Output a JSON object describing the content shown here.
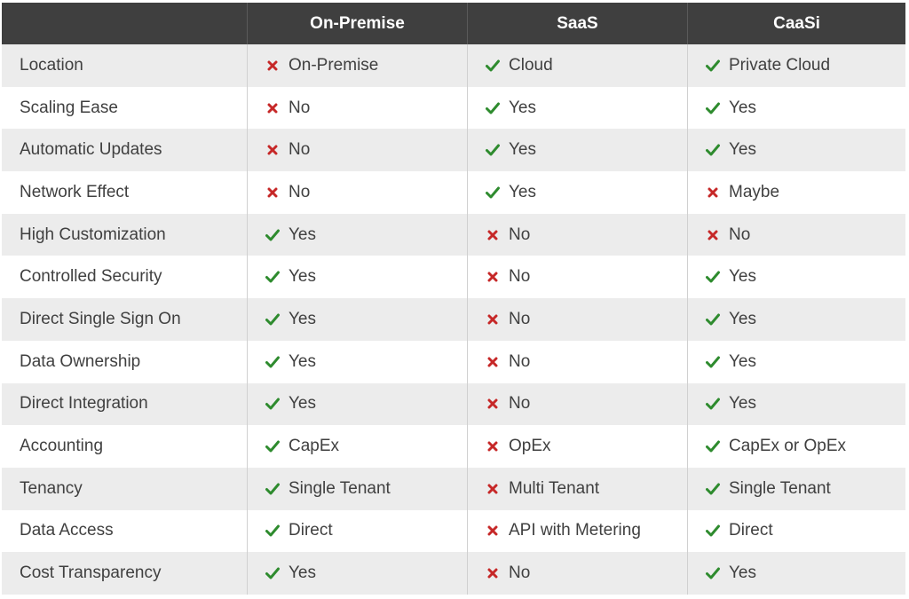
{
  "colors": {
    "header_bg": "#3f3f3f",
    "check": "#2e8b2e",
    "cross": "#c62828",
    "row_alt": "#ececec"
  },
  "header": [
    "",
    "On-Premise",
    "SaaS",
    "CaaSi"
  ],
  "rows": [
    {
      "label": "Location",
      "cells": [
        {
          "icon": "cross",
          "text": "On-Premise"
        },
        {
          "icon": "check",
          "text": "Cloud"
        },
        {
          "icon": "check",
          "text": "Private Cloud"
        }
      ]
    },
    {
      "label": "Scaling Ease",
      "cells": [
        {
          "icon": "cross",
          "text": "No"
        },
        {
          "icon": "check",
          "text": "Yes"
        },
        {
          "icon": "check",
          "text": "Yes"
        }
      ]
    },
    {
      "label": "Automatic Updates",
      "cells": [
        {
          "icon": "cross",
          "text": "No"
        },
        {
          "icon": "check",
          "text": "Yes"
        },
        {
          "icon": "check",
          "text": "Yes"
        }
      ]
    },
    {
      "label": "Network Effect",
      "cells": [
        {
          "icon": "cross",
          "text": "No"
        },
        {
          "icon": "check",
          "text": "Yes"
        },
        {
          "icon": "cross",
          "text": "Maybe"
        }
      ]
    },
    {
      "label": "High Customization",
      "cells": [
        {
          "icon": "check",
          "text": "Yes"
        },
        {
          "icon": "cross",
          "text": "No"
        },
        {
          "icon": "cross",
          "text": "No"
        }
      ]
    },
    {
      "label": "Controlled Security",
      "cells": [
        {
          "icon": "check",
          "text": "Yes"
        },
        {
          "icon": "cross",
          "text": "No"
        },
        {
          "icon": "check",
          "text": "Yes"
        }
      ]
    },
    {
      "label": "Direct Single Sign On",
      "cells": [
        {
          "icon": "check",
          "text": "Yes"
        },
        {
          "icon": "cross",
          "text": "No"
        },
        {
          "icon": "check",
          "text": "Yes"
        }
      ]
    },
    {
      "label": "Data Ownership",
      "cells": [
        {
          "icon": "check",
          "text": "Yes"
        },
        {
          "icon": "cross",
          "text": "No"
        },
        {
          "icon": "check",
          "text": "Yes"
        }
      ]
    },
    {
      "label": "Direct Integration",
      "cells": [
        {
          "icon": "check",
          "text": "Yes"
        },
        {
          "icon": "cross",
          "text": "No"
        },
        {
          "icon": "check",
          "text": "Yes"
        }
      ]
    },
    {
      "label": "Accounting",
      "cells": [
        {
          "icon": "check",
          "text": "CapEx"
        },
        {
          "icon": "cross",
          "text": "OpEx"
        },
        {
          "icon": "check",
          "text": "CapEx or OpEx"
        }
      ]
    },
    {
      "label": "Tenancy",
      "cells": [
        {
          "icon": "check",
          "text": "Single Tenant"
        },
        {
          "icon": "cross",
          "text": "Multi Tenant"
        },
        {
          "icon": "check",
          "text": "Single Tenant"
        }
      ]
    },
    {
      "label": "Data Access",
      "cells": [
        {
          "icon": "check",
          "text": "Direct"
        },
        {
          "icon": "cross",
          "text": "API with Metering"
        },
        {
          "icon": "check",
          "text": "Direct"
        }
      ]
    },
    {
      "label": "Cost Transparency",
      "cells": [
        {
          "icon": "check",
          "text": "Yes"
        },
        {
          "icon": "cross",
          "text": "No"
        },
        {
          "icon": "check",
          "text": "Yes"
        }
      ]
    }
  ]
}
